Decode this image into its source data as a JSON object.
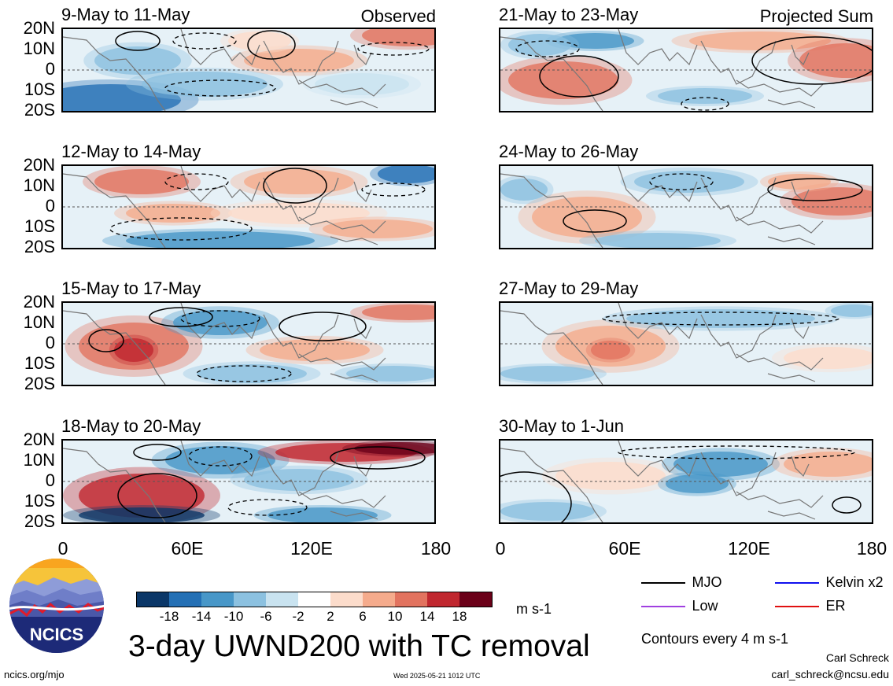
{
  "panels_left": [
    {
      "title": "9-May to 11-May",
      "tag": "Observed"
    },
    {
      "title": "12-May to 14-May"
    },
    {
      "title": "15-May to 17-May"
    },
    {
      "title": "18-May to 20-May"
    }
  ],
  "panels_right": [
    {
      "title": "21-May to 23-May",
      "tag": "Projected Sum"
    },
    {
      "title": "24-May to 26-May"
    },
    {
      "title": "27-May to 29-May"
    },
    {
      "title": "30-May to 1-Jun"
    }
  ],
  "lat_labels": [
    "20N",
    "10N",
    "0",
    "10S",
    "20S"
  ],
  "lon_labels": [
    "0",
    "60E",
    "120E",
    "180"
  ],
  "colorbar": {
    "colors": [
      "#0b3768",
      "#2470b5",
      "#4897c8",
      "#8cc1e0",
      "#c9e3f0",
      "#ffffff",
      "#fcdccb",
      "#f5ab8c",
      "#e2735f",
      "#c0272f",
      "#6b0119"
    ],
    "labels": [
      "-18",
      "-14",
      "-10",
      "-6",
      "-2",
      "2",
      "6",
      "10",
      "14",
      "18"
    ],
    "unit": "m s-1"
  },
  "legend": {
    "items": [
      {
        "label": "MJO",
        "color": "#000000"
      },
      {
        "label": "Kelvin x2",
        "color": "#1010ee"
      },
      {
        "label": "Low",
        "color": "#a040e0"
      },
      {
        "label": "ER",
        "color": "#e01010"
      }
    ],
    "contour_note": "Contours every 4 m s-1"
  },
  "main_title": "3-day UWND200 with TC removal",
  "logo_text": "NCICS",
  "footer": {
    "url": "ncics.org/mjo",
    "timestamp": "Wed 2025-05-21 1012 UTC",
    "author": "Carl Schreck",
    "email": "carl_schreck@ncsu.edu"
  }
}
